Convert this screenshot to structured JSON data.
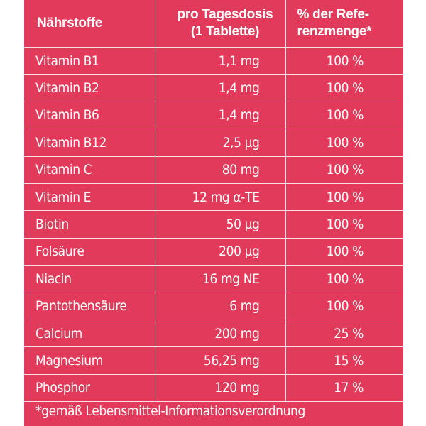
{
  "table": {
    "headers": {
      "nutrient": "Nährstoffe",
      "dose_line1": "pro Tagesdosis",
      "dose_line2": "(1 Tablette)",
      "ref_line1": "% der Refe-",
      "ref_line2": "renzmenge*"
    },
    "rows": [
      {
        "name": "Vitamin B1",
        "dose": "1,1 mg",
        "ref": "100 %"
      },
      {
        "name": "Vitamin B2",
        "dose": "1,4 mg",
        "ref": "100 %"
      },
      {
        "name": "Vitamin B6",
        "dose": "1,4 mg",
        "ref": "100 %"
      },
      {
        "name": "Vitamin B12",
        "dose": "2,5 µg",
        "ref": "100 %"
      },
      {
        "name": "Vitamin C",
        "dose": "80 mg",
        "ref": "100 %"
      },
      {
        "name": "Vitamin E",
        "dose": "12 mg α-TE",
        "ref": "100 %"
      },
      {
        "name": "Biotin",
        "dose": "50 µg",
        "ref": "100 %"
      },
      {
        "name": "Folsäure",
        "dose": "200 µg",
        "ref": "100 %"
      },
      {
        "name": "Niacin",
        "dose": "16 mg NE",
        "ref": "100 %"
      },
      {
        "name": "Pantothensäure",
        "dose": "6 mg",
        "ref": "100 %"
      },
      {
        "name": "Calcium",
        "dose": "200 mg",
        "ref": "25 %"
      },
      {
        "name": "Magnesium",
        "dose": "56,25 mg",
        "ref": "15 %"
      },
      {
        "name": "Phosphor",
        "dose": "120 mg",
        "ref": "17 %"
      }
    ]
  },
  "footnote": "*gemäß Lebensmittel-Informationsverordnung",
  "colors": {
    "background": "#e23a5a",
    "text": "#ffffff"
  }
}
